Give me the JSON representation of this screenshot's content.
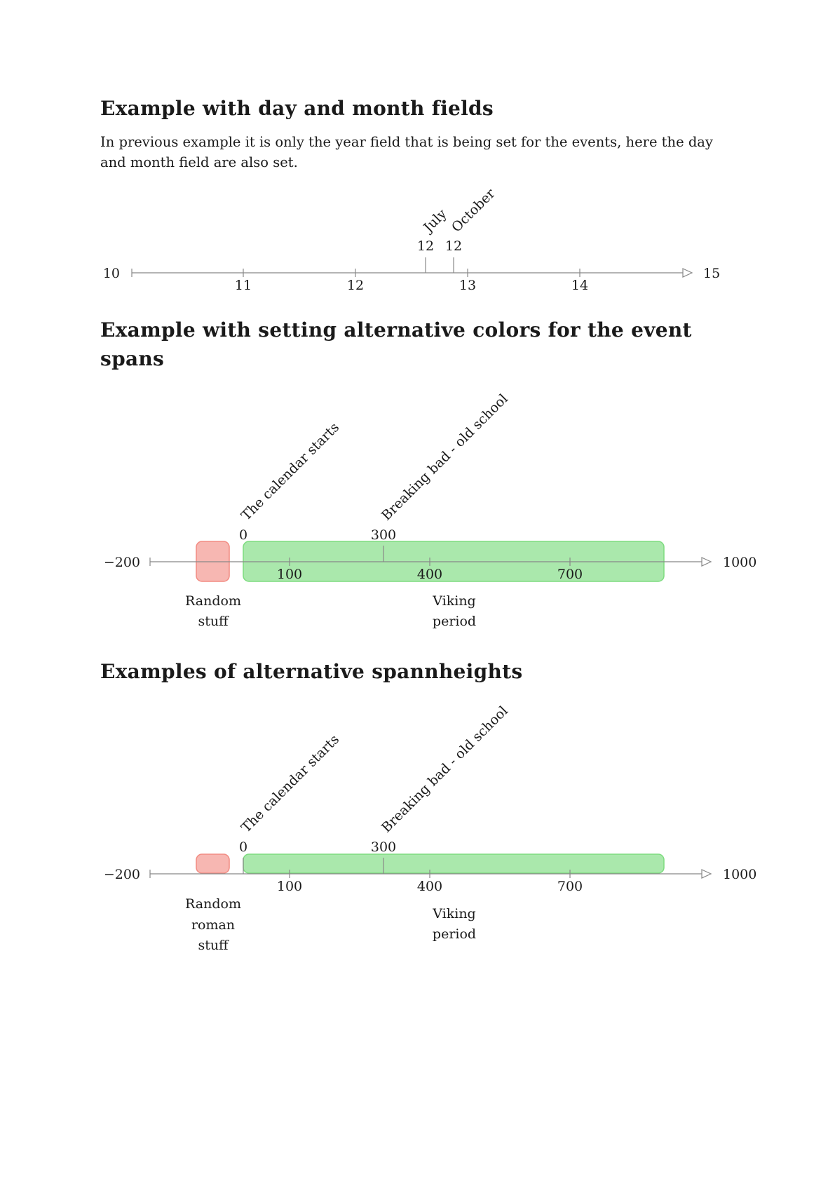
{
  "sections": [
    {
      "heading": "Example with day and month fields",
      "paragraph": "In previous example it is only the year field that is being set for the events, here the day and month field are also set.",
      "timeline": {
        "start_label": "10",
        "end_label": "15",
        "ticks": [
          "11",
          "12",
          "13",
          "14"
        ],
        "events": [
          {
            "value": "12",
            "label": "July"
          },
          {
            "value": "12",
            "label": "October"
          }
        ],
        "spans": []
      }
    },
    {
      "heading": "Example with setting alternative colors for the event spans",
      "timeline": {
        "start_label": "−200",
        "end_label": "1000",
        "ticks": [
          "100",
          "400",
          "700"
        ],
        "events": [
          {
            "value": "0",
            "label": "The calendar starts"
          },
          {
            "value": "300",
            "label": "Breaking bad -  old school"
          }
        ],
        "spans": [
          {
            "label": [
              "Random",
              "stuff"
            ],
            "color": "#f28b82"
          },
          {
            "label": [
              "Viking",
              "period"
            ],
            "color": "#7ddc7f"
          }
        ]
      }
    },
    {
      "heading": "Examples of alternative spannheights",
      "timeline": {
        "start_label": "−200",
        "end_label": "1000",
        "ticks": [
          "100",
          "400",
          "700"
        ],
        "events": [
          {
            "value": "0",
            "label": "The calendar starts"
          },
          {
            "value": "300",
            "label": "Breaking bad -  old school"
          }
        ],
        "spans": [
          {
            "label": [
              "Random",
              "roman",
              "stuff"
            ],
            "color": "#f28b82"
          },
          {
            "label": [
              "Viking",
              "period"
            ],
            "color": "#7ddc7f"
          }
        ]
      }
    }
  ]
}
